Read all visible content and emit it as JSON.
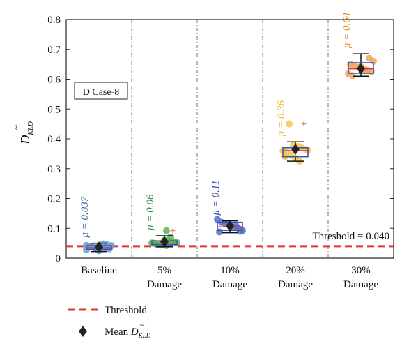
{
  "chart_data": {
    "type": "box",
    "ylabel_base": "D",
    "ylabel_sub": "KLD",
    "ylim": [
      0,
      0.8
    ],
    "yticks": [
      "0",
      "0.1",
      "0.2",
      "0.3",
      "0.4",
      "0.5",
      "0.6",
      "0.7",
      "0.8"
    ],
    "case_label": "D Case-8",
    "threshold": {
      "value": 0.04,
      "label": "Threshold = 0.040",
      "color": "#e8302e"
    },
    "grid": "vertical dashed between groups",
    "groups": [
      {
        "label_lines": [
          "Baseline"
        ],
        "mu_label": "μ = 0.037",
        "color": "#6b9ed3",
        "mu_color": "#3b5fa8",
        "mean": 0.037,
        "q1": 0.03,
        "median": 0.035,
        "q3": 0.042,
        "whisker_low": 0.022,
        "whisker_high": 0.05,
        "outliers": [],
        "points": [
          0.028,
          0.031,
          0.033,
          0.035,
          0.036,
          0.038,
          0.04,
          0.042,
          0.045,
          0.048,
          0.025,
          0.034,
          0.039,
          0.043
        ]
      },
      {
        "label_lines": [
          "5%",
          "Damage"
        ],
        "mu_label": "μ = 0.06",
        "color": "#5ab65a",
        "mu_color": "#2e8b3a",
        "mean": 0.055,
        "q1": 0.045,
        "median": 0.05,
        "q3": 0.058,
        "whisker_low": 0.038,
        "whisker_high": 0.075,
        "outliers": [
          0.092
        ],
        "points": [
          0.042,
          0.045,
          0.048,
          0.05,
          0.052,
          0.055,
          0.058,
          0.06,
          0.044,
          0.047,
          0.051,
          0.054,
          0.07,
          0.092
        ]
      },
      {
        "label_lines": [
          "10%",
          "Damage"
        ],
        "mu_label": "μ = 0.11",
        "color": "#5b6ec2",
        "mu_color": "#3b4fa8",
        "mean": 0.108,
        "q1": 0.093,
        "median": 0.105,
        "q3": 0.12,
        "whisker_low": 0.085,
        "whisker_high": 0.125,
        "outliers": [],
        "points": [
          0.088,
          0.093,
          0.1,
          0.105,
          0.11,
          0.115,
          0.12,
          0.13,
          0.09,
          0.107
        ]
      },
      {
        "label_lines": [
          "20%",
          "Damage"
        ],
        "mu_label": "μ = 0.36",
        "color": "#f2c94c",
        "mu_color": "#e8b82a",
        "mean": 0.365,
        "q1": 0.34,
        "median": 0.36,
        "q3": 0.37,
        "whisker_low": 0.325,
        "whisker_high": 0.39,
        "outliers": [
          0.45
        ],
        "points": [
          0.325,
          0.335,
          0.345,
          0.355,
          0.36,
          0.365,
          0.37,
          0.375,
          0.38,
          0.45,
          0.34,
          0.362
        ]
      },
      {
        "label_lines": [
          "30%",
          "Damage"
        ],
        "mu_label": "μ = 0.64",
        "color": "#f2a45a",
        "mu_color": "#e8862a",
        "mean": 0.635,
        "q1": 0.62,
        "median": 0.635,
        "q3": 0.655,
        "whisker_low": 0.61,
        "whisker_high": 0.685,
        "outliers": [],
        "points": [
          0.612,
          0.618,
          0.625,
          0.63,
          0.635,
          0.64,
          0.645,
          0.65,
          0.66,
          0.67,
          0.628,
          0.642
        ]
      }
    ],
    "legend": [
      {
        "label": "Threshold",
        "type": "dashed-line",
        "color": "#e8302e"
      },
      {
        "label": "Mean",
        "sub_base": "D",
        "sub": "KLD",
        "type": "diamond",
        "color": "#222222"
      }
    ]
  }
}
